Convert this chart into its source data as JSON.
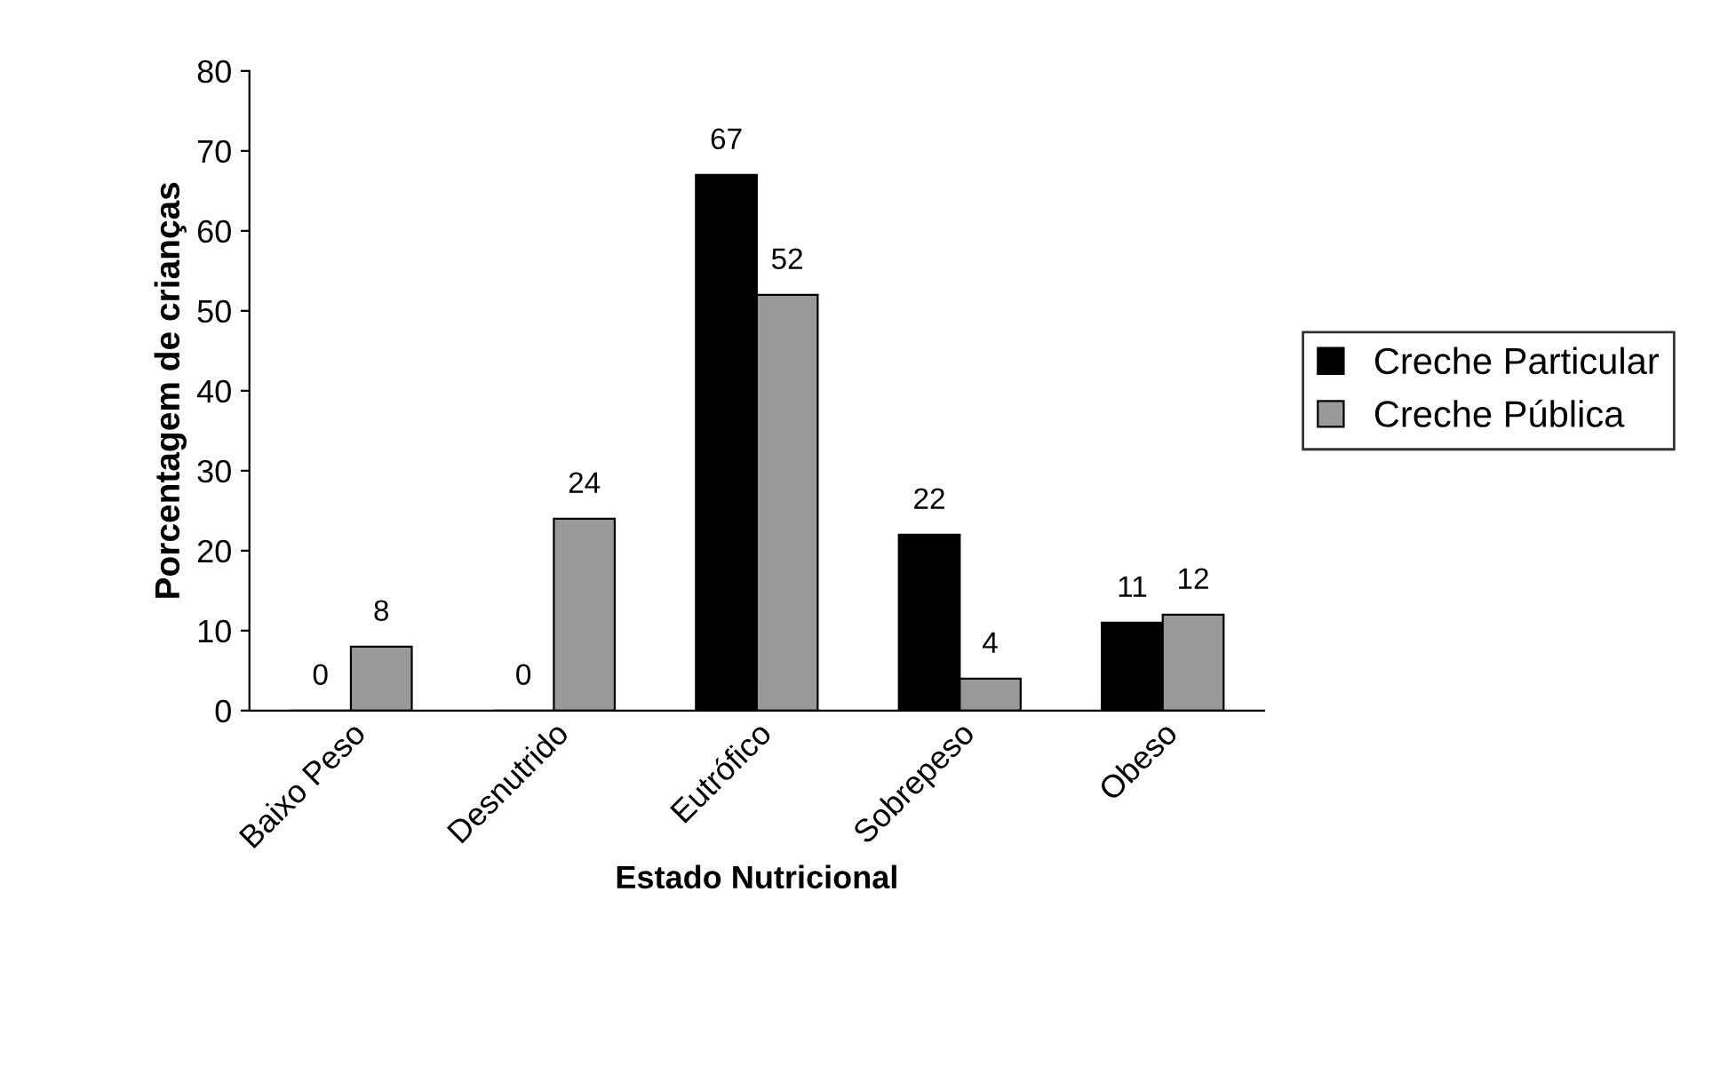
{
  "chart_data": {
    "type": "bar",
    "xlabel": "Estado Nutricional",
    "ylabel": "Porcentagem de crianças",
    "categories": [
      "Baixo Peso",
      "Desnutrido",
      "Eutrófico",
      "Sobrepeso",
      "Obeso"
    ],
    "series": [
      {
        "name": "Creche Particular",
        "color": "#000000",
        "values": [
          0,
          0,
          67,
          22,
          11
        ]
      },
      {
        "name": "Creche Pública",
        "color": "#999999",
        "values": [
          8,
          24,
          52,
          4,
          12
        ]
      }
    ],
    "ylim": [
      0,
      80
    ],
    "yticks": [
      0,
      10,
      20,
      30,
      40,
      50,
      60,
      70,
      80
    ],
    "data_labels": true,
    "legend": "right",
    "grid": false
  }
}
